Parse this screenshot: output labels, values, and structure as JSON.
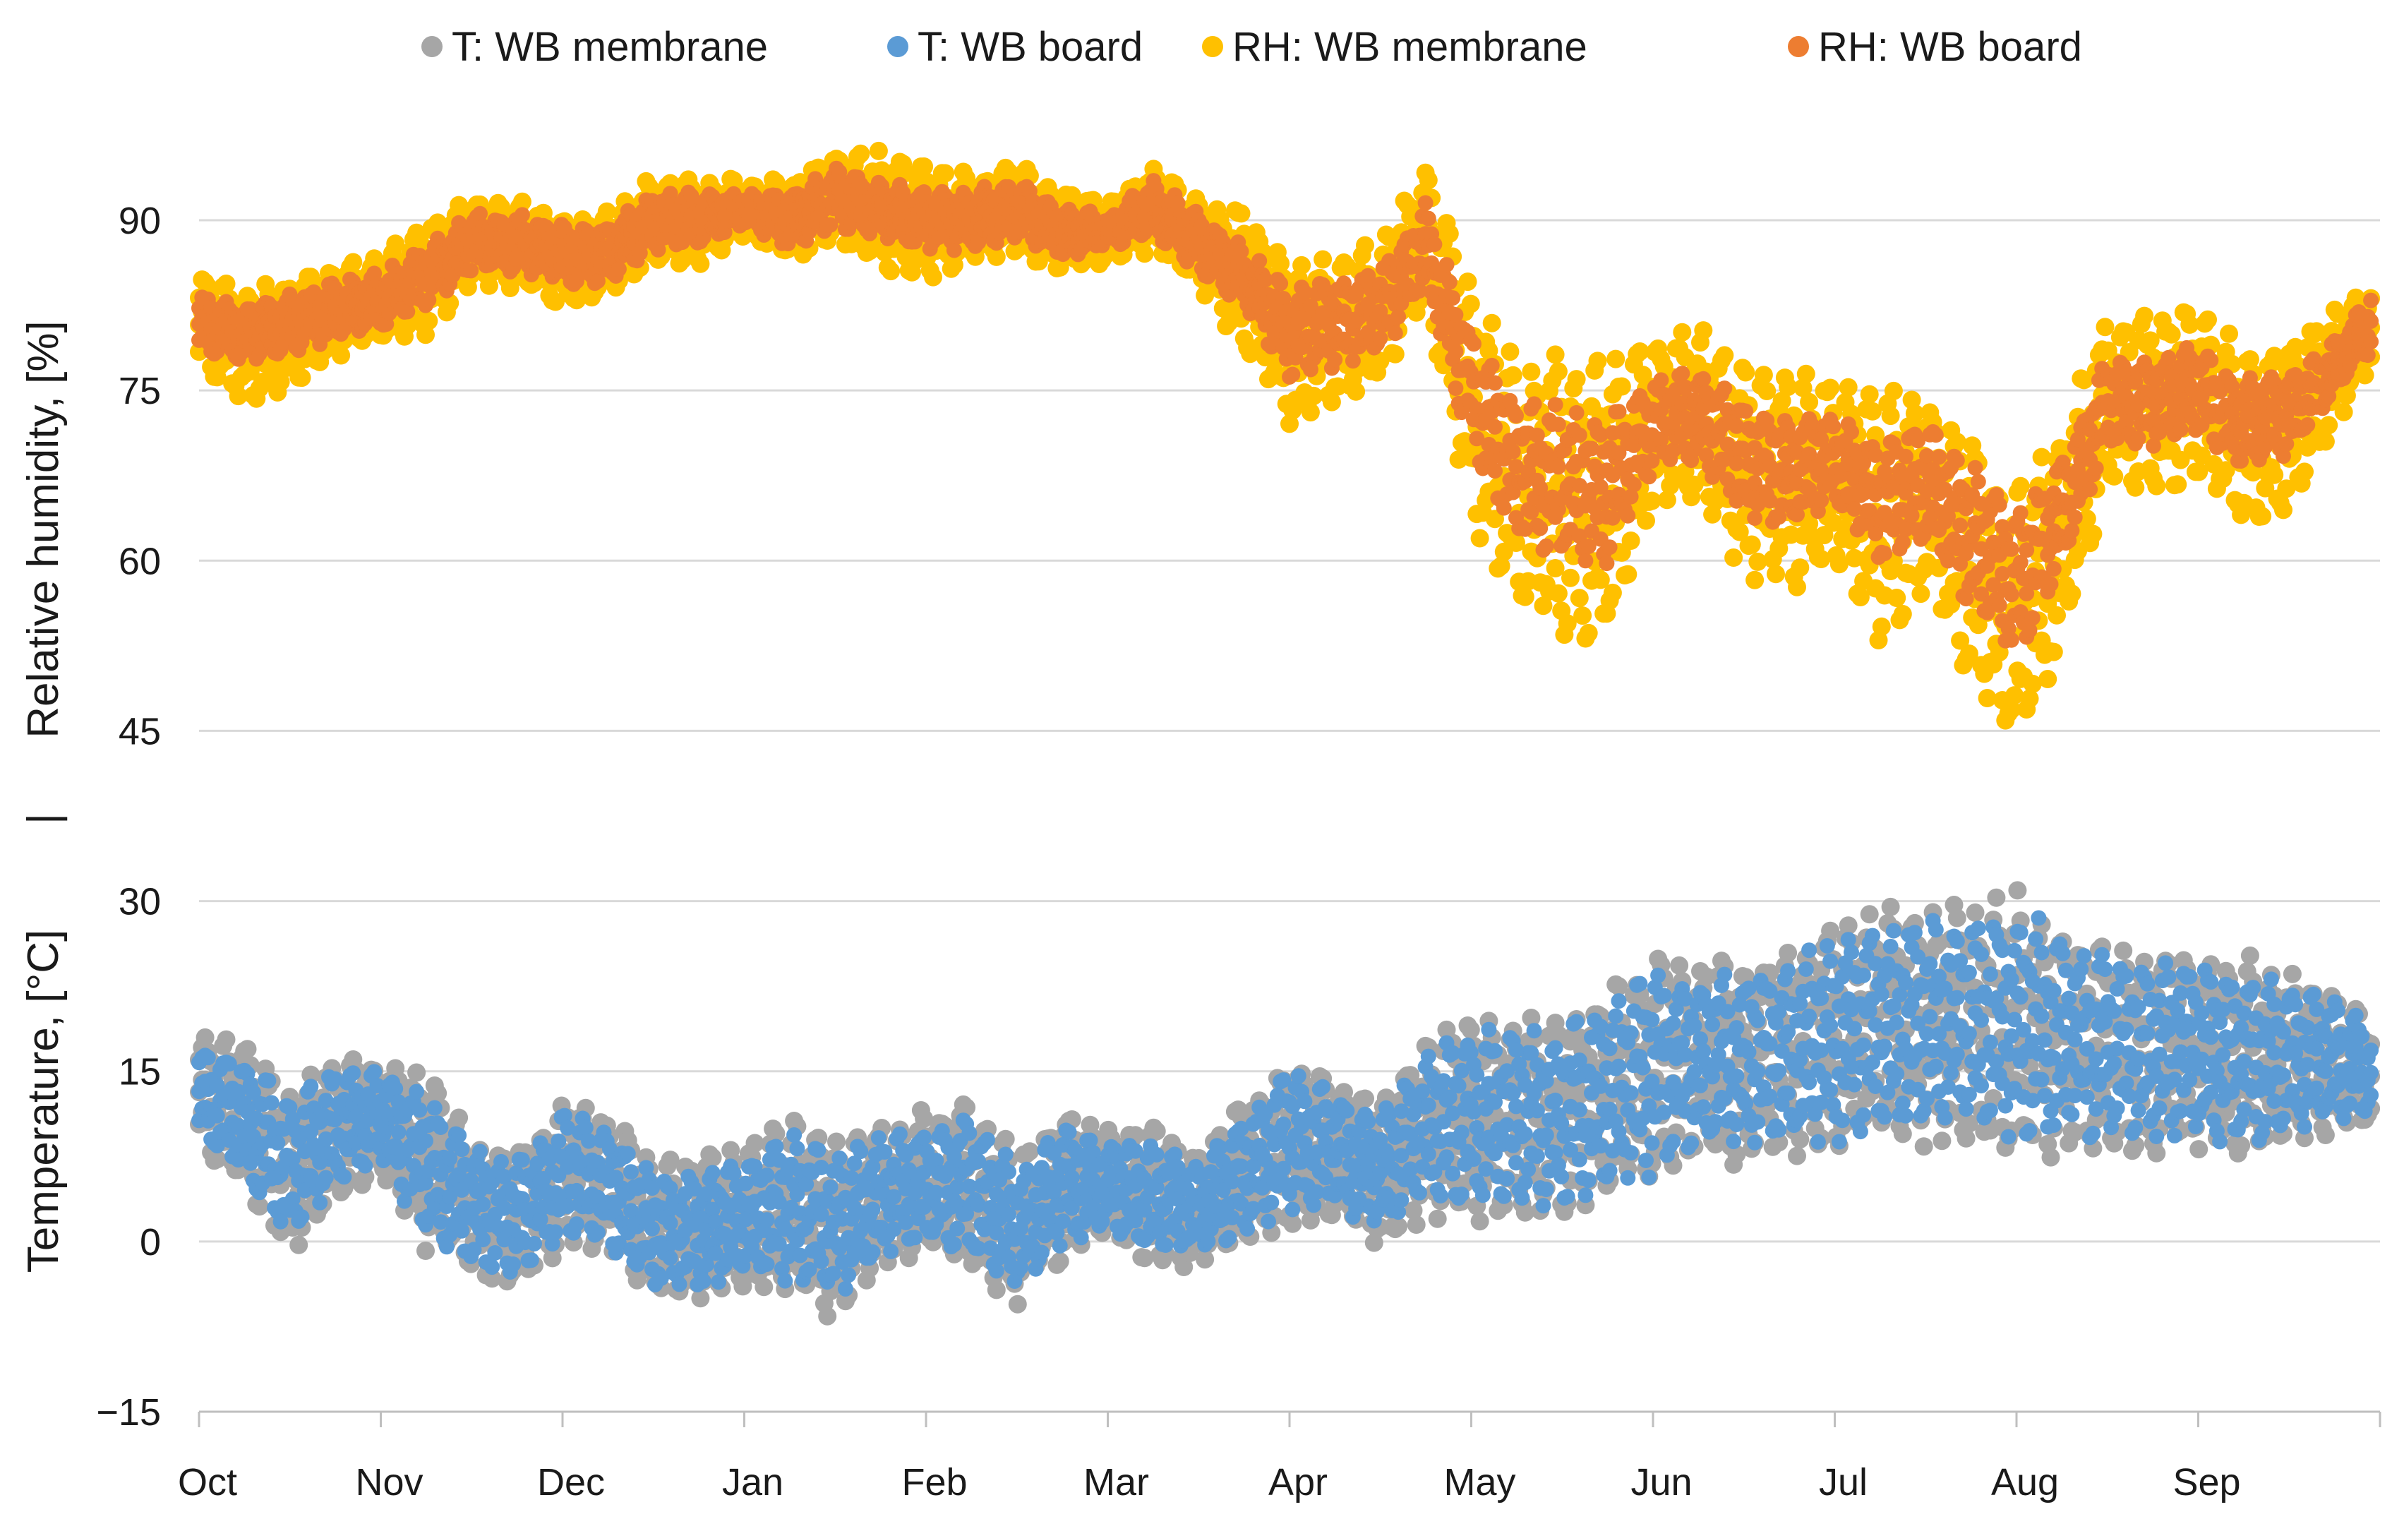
{
  "chart_data": {
    "type": "scatter",
    "title": "",
    "legend_position": "top",
    "grid": true,
    "legend": [
      {
        "key": "t_membrane",
        "label": "T: WB membrane",
        "color": "#a6a6a6"
      },
      {
        "key": "t_board",
        "label": "T: WB board",
        "color": "#5b9bd5"
      },
      {
        "key": "rh_membrane",
        "label": "RH: WB membrane",
        "color": "#ffc000"
      },
      {
        "key": "rh_board",
        "label": "RH: WB board",
        "color": "#ed7d31"
      }
    ],
    "x": {
      "unit": "month",
      "range": [
        0,
        12
      ],
      "tick_labels": [
        "Oct",
        "Nov",
        "Dec",
        "Jan",
        "Feb",
        "Mar",
        "Apr",
        "May",
        "Jun",
        "Jul",
        "Aug",
        "Sep"
      ],
      "tick_positions": [
        0,
        1,
        2,
        3,
        4,
        5,
        6,
        7,
        8,
        9,
        10,
        11
      ]
    },
    "y": {
      "range": [
        -15,
        105
      ],
      "ticks": [
        -15,
        0,
        15,
        30,
        45,
        60,
        75,
        90
      ],
      "tick_labels": [
        "−15",
        "0",
        "15",
        "30",
        "45",
        "60",
        "75",
        "90"
      ],
      "rh_axis_title": "Relative humidity, [%]",
      "separator_label": "|",
      "temp_axis_title": "Temperature, [°C]"
    },
    "series": [
      {
        "key": "rh_membrane",
        "name": "RH: WB membrane",
        "color": "#ffc000",
        "x": [
          0,
          0.25,
          0.5,
          0.75,
          1,
          1.25,
          1.5,
          1.75,
          2,
          2.25,
          2.5,
          2.75,
          3,
          3.25,
          3.5,
          3.75,
          4,
          4.25,
          4.5,
          4.75,
          5,
          5.25,
          5.5,
          5.75,
          6,
          6.25,
          6.5,
          6.75,
          7,
          7.25,
          7.5,
          7.75,
          8,
          8.25,
          8.5,
          8.75,
          9,
          9.25,
          9.5,
          9.75,
          10,
          10.25,
          10.5,
          10.75,
          11,
          11.25,
          11.5,
          11.75,
          11.95
        ],
        "mean": [
          81,
          79,
          80,
          82,
          83,
          85,
          88,
          88,
          86,
          87,
          90,
          90,
          91,
          90,
          92,
          91,
          90,
          90,
          91,
          89,
          89,
          91,
          88,
          85,
          79,
          80,
          82,
          89,
          74,
          66,
          66,
          65,
          72,
          73,
          68,
          67,
          68,
          64,
          66,
          60,
          55,
          62,
          74,
          74,
          75,
          71,
          72,
          77,
          81
        ],
        "spread": [
          3,
          4,
          4,
          3,
          3,
          4,
          3,
          3,
          3,
          3,
          3,
          3,
          2,
          3,
          3,
          4,
          4,
          3,
          3,
          3,
          2,
          3,
          3,
          5,
          6,
          5,
          5,
          5,
          8,
          9,
          10,
          10,
          6,
          6,
          7,
          8,
          6,
          9,
          7,
          9,
          9,
          8,
          6,
          6,
          6,
          6,
          6,
          4,
          3
        ]
      },
      {
        "key": "rh_board",
        "name": "RH: WB board",
        "color": "#ed7d31",
        "x": [
          0,
          0.25,
          0.5,
          0.75,
          1,
          1.25,
          1.5,
          1.75,
          2,
          2.25,
          2.5,
          2.75,
          3,
          3.25,
          3.5,
          3.75,
          4,
          4.25,
          4.5,
          4.75,
          5,
          5.25,
          5.5,
          5.75,
          6,
          6.25,
          6.5,
          6.75,
          7,
          7.25,
          7.5,
          7.75,
          8,
          8.25,
          8.5,
          8.75,
          9,
          9.25,
          9.5,
          9.75,
          10,
          10.25,
          10.5,
          10.75,
          11,
          11.25,
          11.5,
          11.75,
          11.95
        ],
        "mean": [
          81,
          80,
          81,
          82,
          83,
          85,
          88,
          88,
          87,
          87,
          90,
          90,
          91,
          90,
          92,
          91,
          90,
          90,
          91,
          89,
          89,
          91,
          88,
          85,
          80,
          81,
          82,
          88,
          75,
          68,
          67,
          66,
          72,
          73,
          69,
          68,
          69,
          65,
          67,
          62,
          58,
          64,
          74,
          74,
          75,
          72,
          73,
          77,
          81
        ],
        "spread": [
          2,
          2,
          2,
          2,
          2,
          2,
          2,
          2,
          2,
          2,
          2,
          2,
          1,
          2,
          2,
          2,
          2,
          2,
          2,
          2,
          1,
          2,
          2,
          2,
          3,
          3,
          3,
          3,
          4,
          5,
          5,
          5,
          3,
          3,
          4,
          4,
          3,
          4,
          4,
          5,
          5,
          4,
          3,
          3,
          3,
          3,
          3,
          2,
          2
        ]
      },
      {
        "key": "t_membrane",
        "name": "T: WB membrane",
        "color": "#a6a6a6",
        "x": [
          0,
          0.25,
          0.5,
          0.75,
          1,
          1.25,
          1.5,
          1.75,
          2,
          2.25,
          2.5,
          2.75,
          3,
          3.25,
          3.5,
          3.75,
          4,
          4.25,
          4.5,
          4.75,
          5,
          5.25,
          5.5,
          5.75,
          6,
          6.25,
          6.5,
          6.75,
          7,
          7.25,
          7.5,
          7.75,
          8,
          8.25,
          8.5,
          8.75,
          9,
          9.25,
          9.5,
          9.75,
          10,
          10.25,
          10.5,
          10.75,
          11,
          11.25,
          11.5,
          11.75,
          11.95
        ],
        "mean": [
          13,
          11,
          6,
          10,
          11,
          7,
          3,
          2,
          6,
          5,
          1,
          1,
          2,
          3,
          1,
          4,
          5,
          5,
          1,
          5,
          5,
          4,
          3,
          6,
          9,
          8,
          6,
          10,
          11,
          11,
          11,
          13,
          15,
          16,
          16,
          17,
          18,
          19,
          19,
          19,
          19,
          18,
          17,
          17,
          17,
          16,
          16,
          16,
          15
        ],
        "spread": [
          4,
          5,
          6,
          5,
          4,
          6,
          5,
          5,
          5,
          5,
          5,
          5,
          5,
          6,
          6,
          5,
          5,
          6,
          5,
          5,
          4,
          5,
          4,
          5,
          6,
          5,
          5,
          6,
          7,
          7,
          7,
          7,
          8,
          7,
          7,
          7,
          8,
          8,
          8,
          8,
          9,
          8,
          7,
          7,
          7,
          7,
          6,
          5,
          4
        ]
      },
      {
        "key": "t_board",
        "name": "T: WB board",
        "color": "#5b9bd5",
        "x": [
          0,
          0.25,
          0.5,
          0.75,
          1,
          1.25,
          1.5,
          1.75,
          2,
          2.25,
          2.5,
          2.75,
          3,
          3.25,
          3.5,
          3.75,
          4,
          4.25,
          4.5,
          4.75,
          5,
          5.25,
          5.5,
          5.75,
          6,
          6.25,
          6.5,
          6.75,
          7,
          7.25,
          7.5,
          7.75,
          8,
          8.25,
          8.5,
          8.75,
          9,
          9.25,
          9.5,
          9.75,
          10,
          10.25,
          10.5,
          10.75,
          11,
          11.25,
          11.5,
          11.75,
          11.95
        ],
        "mean": [
          13,
          11,
          6,
          10,
          11,
          7,
          3,
          2,
          6,
          5,
          1,
          1,
          2,
          3,
          1,
          4,
          5,
          5,
          1,
          5,
          5,
          4,
          3,
          6,
          9,
          8,
          6,
          10,
          11,
          11,
          11,
          13,
          15,
          16,
          16,
          17,
          18,
          19,
          19,
          19,
          19,
          18,
          17,
          17,
          17,
          16,
          16,
          16,
          15
        ],
        "spread": [
          3,
          4,
          5,
          4,
          3,
          5,
          4,
          4,
          4,
          4,
          4,
          4,
          4,
          5,
          5,
          4,
          4,
          5,
          4,
          4,
          3,
          4,
          3,
          4,
          5,
          4,
          4,
          5,
          6,
          6,
          6,
          6,
          7,
          6,
          6,
          6,
          7,
          7,
          7,
          7,
          8,
          7,
          6,
          6,
          6,
          6,
          5,
          4,
          3
        ]
      }
    ]
  }
}
